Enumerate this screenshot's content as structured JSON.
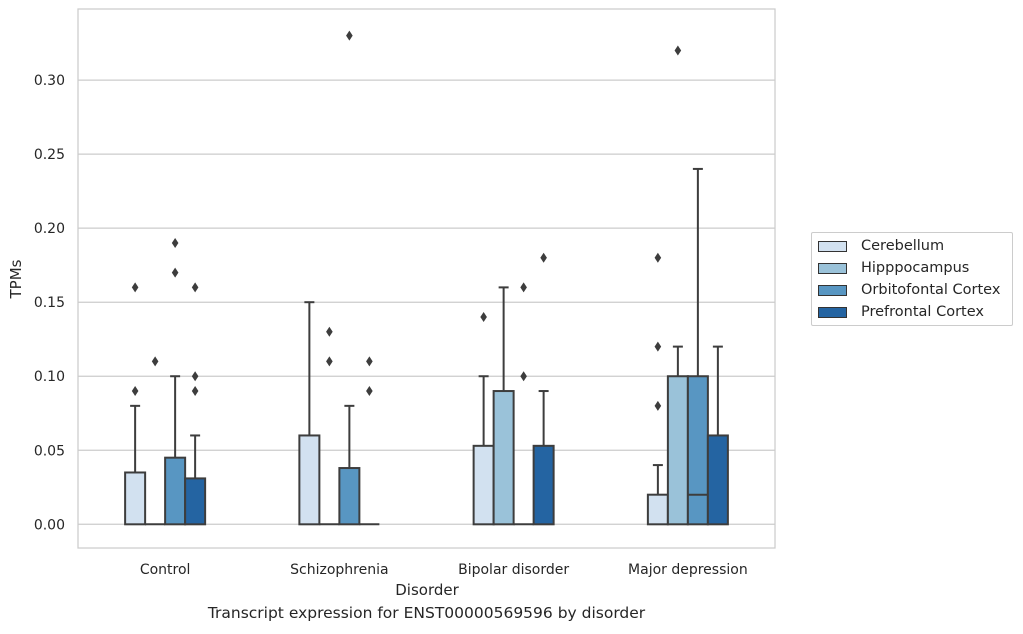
{
  "chart_data": {
    "type": "box",
    "xlabel": "Disorder",
    "ylabel": "TPMs",
    "caption": "Transcript expression for ENST00000569596 by disorder",
    "ylim": [
      -0.016,
      0.348
    ],
    "yticks": [
      0.0,
      0.05,
      0.1,
      0.15,
      0.2,
      0.25,
      0.3
    ],
    "ytick_labels": [
      "0.00",
      "0.05",
      "0.10",
      "0.15",
      "0.20",
      "0.25",
      "0.30"
    ],
    "grid": true,
    "legend_position": "right",
    "categories": [
      "Control",
      "Schizophrenia",
      "Bipolar disorder",
      "Major depression"
    ],
    "series": [
      {
        "name": "Cerebellum",
        "color": "#d2e1f0",
        "boxes": [
          {
            "q1": 0.0,
            "median": 0.0,
            "q3": 0.035,
            "whislo": 0.0,
            "whishi": 0.08,
            "fliers": [
              0.09,
              0.16
            ]
          },
          {
            "q1": 0.0,
            "median": 0.0,
            "q3": 0.06,
            "whislo": 0.0,
            "whishi": 0.15,
            "fliers": []
          },
          {
            "q1": 0.0,
            "median": 0.0,
            "q3": 0.053,
            "whislo": 0.0,
            "whishi": 0.1,
            "fliers": [
              0.14
            ]
          },
          {
            "q1": 0.0,
            "median": 0.0,
            "q3": 0.02,
            "whislo": 0.0,
            "whishi": 0.04,
            "fliers": [
              0.08,
              0.12,
              0.18
            ]
          }
        ]
      },
      {
        "name": "Hipppocampus",
        "color": "#9ac2d9",
        "boxes": [
          {
            "q1": 0.0,
            "median": 0.0,
            "q3": 0.0,
            "whislo": 0.0,
            "whishi": 0.0,
            "fliers": [
              0.11
            ]
          },
          {
            "q1": 0.0,
            "median": 0.0,
            "q3": 0.0,
            "whislo": 0.0,
            "whishi": 0.0,
            "fliers": [
              0.11,
              0.13
            ]
          },
          {
            "q1": 0.0,
            "median": 0.0,
            "q3": 0.09,
            "whislo": 0.0,
            "whishi": 0.16,
            "fliers": []
          },
          {
            "q1": 0.0,
            "median": 0.0,
            "q3": 0.1,
            "whislo": 0.0,
            "whishi": 0.12,
            "fliers": [
              0.32
            ]
          }
        ]
      },
      {
        "name": "Orbitofontal Cortex",
        "color": "#5896c2",
        "boxes": [
          {
            "q1": 0.0,
            "median": 0.0,
            "q3": 0.045,
            "whislo": 0.0,
            "whishi": 0.1,
            "fliers": [
              0.17,
              0.19
            ]
          },
          {
            "q1": 0.0,
            "median": 0.0,
            "q3": 0.038,
            "whislo": 0.0,
            "whishi": 0.08,
            "fliers": [
              0.33
            ]
          },
          {
            "q1": 0.0,
            "median": 0.0,
            "q3": 0.0,
            "whislo": 0.0,
            "whishi": 0.0,
            "fliers": [
              0.1,
              0.16
            ]
          },
          {
            "q1": 0.0,
            "median": 0.02,
            "q3": 0.1,
            "whislo": 0.0,
            "whishi": 0.24,
            "fliers": []
          }
        ]
      },
      {
        "name": "Prefrontal Cortex",
        "color": "#2464a2",
        "boxes": [
          {
            "q1": 0.0,
            "median": 0.0,
            "q3": 0.031,
            "whislo": 0.0,
            "whishi": 0.06,
            "fliers": [
              0.09,
              0.1,
              0.16
            ]
          },
          {
            "q1": 0.0,
            "median": 0.0,
            "q3": 0.0,
            "whislo": 0.0,
            "whishi": 0.0,
            "fliers": [
              0.09,
              0.11
            ]
          },
          {
            "q1": 0.0,
            "median": 0.0,
            "q3": 0.053,
            "whislo": 0.0,
            "whishi": 0.09,
            "fliers": [
              0.18
            ]
          },
          {
            "q1": 0.0,
            "median": 0.0,
            "q3": 0.06,
            "whislo": 0.0,
            "whishi": 0.12,
            "fliers": []
          }
        ]
      }
    ]
  }
}
